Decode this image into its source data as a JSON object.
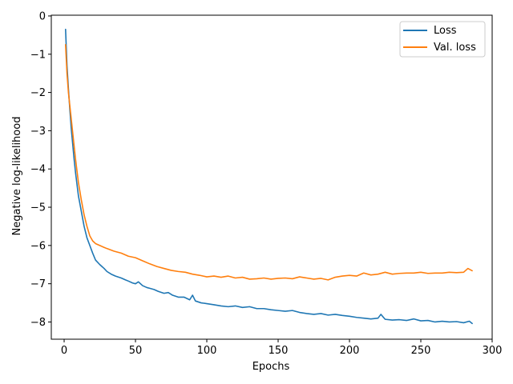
{
  "chart_data": {
    "type": "line",
    "title": "",
    "xlabel": "Epochs",
    "ylabel": "Negative log-likelihood",
    "xlim": [
      -9,
      300
    ],
    "ylim": [
      -8.45,
      0.02
    ],
    "xticks": [
      0,
      50,
      100,
      150,
      200,
      250,
      300
    ],
    "yticks": [
      0,
      -1,
      -2,
      -3,
      -4,
      -5,
      -6,
      -7,
      -8
    ],
    "xtick_labels": [
      "0",
      "50",
      "100",
      "150",
      "200",
      "250",
      "300"
    ],
    "ytick_labels": [
      "0",
      "−1",
      "−2",
      "−3",
      "−4",
      "−5",
      "−6",
      "−7",
      "−8"
    ],
    "grid": false,
    "legend_position": "top-right",
    "series": [
      {
        "name": "Loss",
        "color": "#1f77b4",
        "points": [
          [
            1,
            -0.35
          ],
          [
            2,
            -1.3
          ],
          [
            3,
            -1.9
          ],
          [
            4,
            -2.45
          ],
          [
            5,
            -2.95
          ],
          [
            6,
            -3.35
          ],
          [
            7,
            -3.75
          ],
          [
            8,
            -4.1
          ],
          [
            9,
            -4.4
          ],
          [
            10,
            -4.7
          ],
          [
            12,
            -5.1
          ],
          [
            14,
            -5.5
          ],
          [
            16,
            -5.8
          ],
          [
            18,
            -6.0
          ],
          [
            20,
            -6.2
          ],
          [
            22,
            -6.38
          ],
          [
            25,
            -6.5
          ],
          [
            28,
            -6.6
          ],
          [
            30,
            -6.68
          ],
          [
            33,
            -6.75
          ],
          [
            36,
            -6.8
          ],
          [
            40,
            -6.85
          ],
          [
            43,
            -6.9
          ],
          [
            45,
            -6.93
          ],
          [
            48,
            -6.98
          ],
          [
            50,
            -7.0
          ],
          [
            52,
            -6.95
          ],
          [
            55,
            -7.05
          ],
          [
            58,
            -7.1
          ],
          [
            60,
            -7.12
          ],
          [
            63,
            -7.15
          ],
          [
            66,
            -7.2
          ],
          [
            70,
            -7.25
          ],
          [
            73,
            -7.23
          ],
          [
            76,
            -7.3
          ],
          [
            80,
            -7.35
          ],
          [
            84,
            -7.35
          ],
          [
            88,
            -7.42
          ],
          [
            90,
            -7.3
          ],
          [
            92,
            -7.45
          ],
          [
            96,
            -7.5
          ],
          [
            100,
            -7.52
          ],
          [
            105,
            -7.55
          ],
          [
            110,
            -7.58
          ],
          [
            115,
            -7.6
          ],
          [
            120,
            -7.58
          ],
          [
            125,
            -7.62
          ],
          [
            130,
            -7.6
          ],
          [
            135,
            -7.65
          ],
          [
            140,
            -7.65
          ],
          [
            145,
            -7.68
          ],
          [
            150,
            -7.7
          ],
          [
            155,
            -7.72
          ],
          [
            160,
            -7.7
          ],
          [
            165,
            -7.75
          ],
          [
            170,
            -7.78
          ],
          [
            175,
            -7.8
          ],
          [
            180,
            -7.78
          ],
          [
            185,
            -7.82
          ],
          [
            190,
            -7.8
          ],
          [
            195,
            -7.83
          ],
          [
            200,
            -7.85
          ],
          [
            205,
            -7.88
          ],
          [
            210,
            -7.9
          ],
          [
            215,
            -7.92
          ],
          [
            220,
            -7.9
          ],
          [
            222,
            -7.8
          ],
          [
            225,
            -7.93
          ],
          [
            230,
            -7.95
          ],
          [
            235,
            -7.94
          ],
          [
            240,
            -7.96
          ],
          [
            245,
            -7.92
          ],
          [
            250,
            -7.97
          ],
          [
            255,
            -7.96
          ],
          [
            260,
            -8.0
          ],
          [
            265,
            -7.98
          ],
          [
            270,
            -8.0
          ],
          [
            275,
            -7.99
          ],
          [
            280,
            -8.02
          ],
          [
            284,
            -7.98
          ],
          [
            286,
            -8.04
          ]
        ]
      },
      {
        "name": "Val. loss",
        "color": "#ff7f0e",
        "points": [
          [
            1,
            -0.75
          ],
          [
            2,
            -1.5
          ],
          [
            3,
            -2.0
          ],
          [
            4,
            -2.35
          ],
          [
            5,
            -2.7
          ],
          [
            6,
            -3.05
          ],
          [
            7,
            -3.4
          ],
          [
            8,
            -3.75
          ],
          [
            9,
            -4.05
          ],
          [
            10,
            -4.35
          ],
          [
            12,
            -4.8
          ],
          [
            14,
            -5.2
          ],
          [
            16,
            -5.5
          ],
          [
            18,
            -5.75
          ],
          [
            20,
            -5.88
          ],
          [
            22,
            -5.95
          ],
          [
            25,
            -6.0
          ],
          [
            28,
            -6.05
          ],
          [
            30,
            -6.08
          ],
          [
            35,
            -6.15
          ],
          [
            40,
            -6.2
          ],
          [
            45,
            -6.28
          ],
          [
            50,
            -6.32
          ],
          [
            55,
            -6.4
          ],
          [
            60,
            -6.48
          ],
          [
            65,
            -6.55
          ],
          [
            70,
            -6.6
          ],
          [
            75,
            -6.65
          ],
          [
            80,
            -6.68
          ],
          [
            85,
            -6.7
          ],
          [
            90,
            -6.75
          ],
          [
            95,
            -6.78
          ],
          [
            100,
            -6.82
          ],
          [
            105,
            -6.8
          ],
          [
            110,
            -6.83
          ],
          [
            115,
            -6.8
          ],
          [
            120,
            -6.85
          ],
          [
            125,
            -6.83
          ],
          [
            130,
            -6.88
          ],
          [
            135,
            -6.87
          ],
          [
            140,
            -6.85
          ],
          [
            145,
            -6.88
          ],
          [
            150,
            -6.86
          ],
          [
            155,
            -6.85
          ],
          [
            160,
            -6.87
          ],
          [
            165,
            -6.82
          ],
          [
            170,
            -6.85
          ],
          [
            175,
            -6.88
          ],
          [
            180,
            -6.86
          ],
          [
            185,
            -6.9
          ],
          [
            190,
            -6.83
          ],
          [
            195,
            -6.8
          ],
          [
            200,
            -6.78
          ],
          [
            205,
            -6.8
          ],
          [
            210,
            -6.72
          ],
          [
            215,
            -6.77
          ],
          [
            220,
            -6.75
          ],
          [
            225,
            -6.7
          ],
          [
            230,
            -6.75
          ],
          [
            235,
            -6.73
          ],
          [
            240,
            -6.72
          ],
          [
            245,
            -6.72
          ],
          [
            250,
            -6.7
          ],
          [
            255,
            -6.73
          ],
          [
            260,
            -6.72
          ],
          [
            265,
            -6.72
          ],
          [
            270,
            -6.7
          ],
          [
            275,
            -6.71
          ],
          [
            280,
            -6.7
          ],
          [
            283,
            -6.6
          ],
          [
            286,
            -6.66
          ]
        ]
      }
    ]
  }
}
